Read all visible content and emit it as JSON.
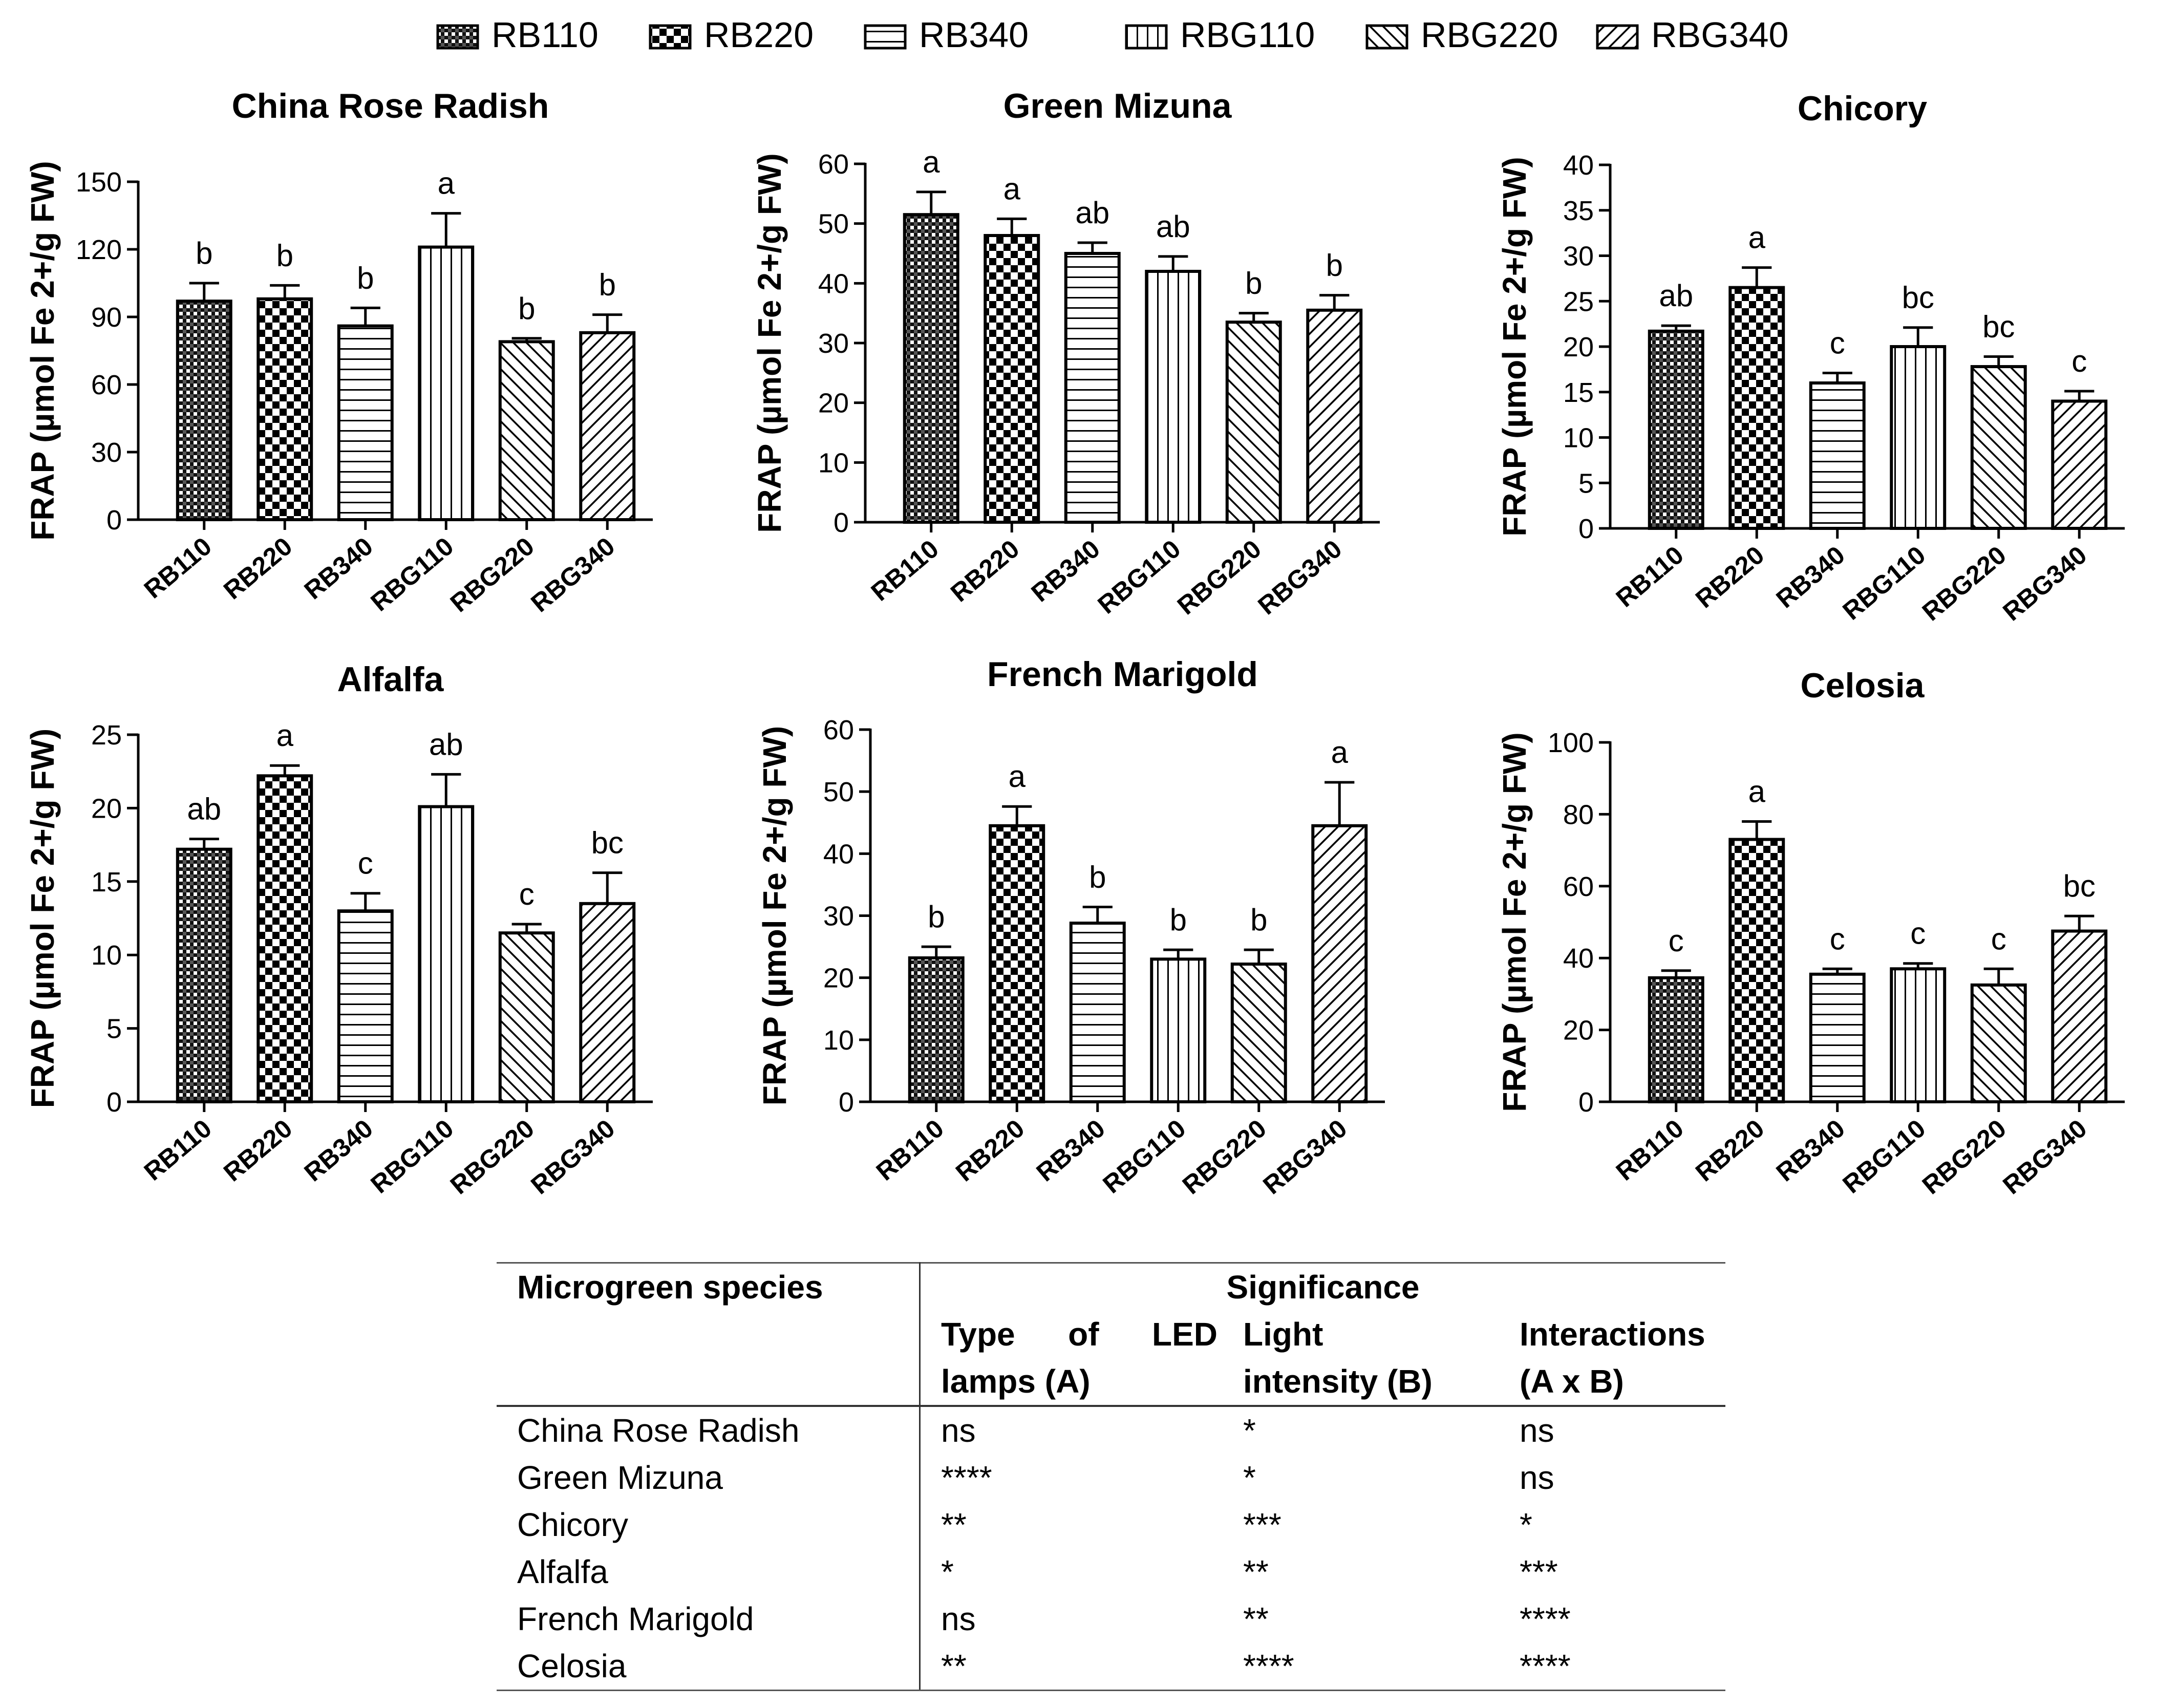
{
  "legend": [
    {
      "label": "RB110",
      "pattern": "pat-rb110"
    },
    {
      "label": "RB220",
      "pattern": "pat-rb220"
    },
    {
      "label": "RB340",
      "pattern": "pat-rb340"
    },
    {
      "label": "RBG110",
      "pattern": "pat-rbg110"
    },
    {
      "label": "RBG220",
      "pattern": "pat-rbg220"
    },
    {
      "label": "RBG340",
      "pattern": "pat-rbg340"
    }
  ],
  "colors": {
    "ink": "#000000",
    "background": "#ffffff",
    "rule": "#333333"
  },
  "chart_data": [
    {
      "type": "bar",
      "title": "China Rose Radish",
      "ylabel": "FRAP (µmol Fe 2+/g FW)",
      "categories": [
        "RB110",
        "RB220",
        "RB340",
        "RBG110",
        "RBG220",
        "RBG340"
      ],
      "values": [
        97,
        98,
        86,
        121,
        79,
        83
      ],
      "errors": [
        8,
        6,
        8,
        15,
        1.5,
        8
      ],
      "letters": [
        "b",
        "b",
        "b",
        "a",
        "b",
        "b"
      ],
      "ylim": [
        0,
        150
      ],
      "yticks": [
        0,
        30,
        60,
        90,
        120,
        150
      ]
    },
    {
      "type": "bar",
      "title": "Green Mizuna",
      "ylabel": "FRAP (µmol Fe 2+/g FW)",
      "categories": [
        "RB110",
        "RB220",
        "RB340",
        "RBG110",
        "RBG220",
        "RBG340"
      ],
      "values": [
        51.5,
        48,
        45,
        42,
        33.5,
        35.5
      ],
      "errors": [
        3.8,
        2.8,
        1.8,
        2.5,
        1.5,
        2.5
      ],
      "letters": [
        "a",
        "a",
        "ab",
        "ab",
        "b",
        "b"
      ],
      "ylim": [
        0,
        60
      ],
      "yticks": [
        0,
        10,
        20,
        30,
        40,
        50,
        60
      ]
    },
    {
      "type": "bar",
      "title": "Chicory",
      "ylabel": "FRAP (µmol Fe 2+/g FW)",
      "categories": [
        "RB110",
        "RB220",
        "RB340",
        "RBG110",
        "RBG220",
        "RBG340"
      ],
      "values": [
        21.7,
        26.5,
        16,
        20,
        17.8,
        14
      ],
      "errors": [
        0.6,
        2.2,
        1.1,
        2.1,
        1.1,
        1.1
      ],
      "letters": [
        "ab",
        "a",
        "c",
        "bc",
        "bc",
        "c"
      ],
      "ylim": [
        0,
        40
      ],
      "yticks": [
        0,
        5,
        10,
        15,
        20,
        25,
        30,
        35,
        40
      ]
    },
    {
      "type": "bar",
      "title": "Alfalfa",
      "ylabel": "FRAP (µmol Fe 2+/g FW)",
      "categories": [
        "RB110",
        "RB220",
        "RB340",
        "RBG110",
        "RBG220",
        "RBG340"
      ],
      "values": [
        17.2,
        22.2,
        13,
        20.1,
        11.5,
        13.5
      ],
      "errors": [
        0.7,
        0.7,
        1.2,
        2.2,
        0.6,
        2.1
      ],
      "letters": [
        "ab",
        "a",
        "c",
        "ab",
        "c",
        "bc"
      ],
      "ylim": [
        0,
        25
      ],
      "yticks": [
        0,
        5,
        10,
        15,
        20,
        25
      ]
    },
    {
      "type": "bar",
      "title": "French Marigold",
      "ylabel": "FRAP (µmol Fe 2+/g FW)",
      "categories": [
        "RB110",
        "RB220",
        "RB340",
        "RBG110",
        "RBG220",
        "RBG340"
      ],
      "values": [
        23.2,
        44.5,
        28.8,
        23,
        22.2,
        44.5
      ],
      "errors": [
        1.8,
        3.1,
        2.6,
        1.5,
        2.3,
        7
      ],
      "letters": [
        "b",
        "a",
        "b",
        "b",
        "b",
        "a"
      ],
      "ylim": [
        0,
        60
      ],
      "yticks": [
        0,
        10,
        20,
        30,
        40,
        50,
        60
      ]
    },
    {
      "type": "bar",
      "title": "Celosia",
      "ylabel": "FRAP (µmol Fe 2+/g FW)",
      "categories": [
        "RB110",
        "RB220",
        "RB340",
        "RBG110",
        "RBG220",
        "RBG340"
      ],
      "values": [
        34.5,
        73,
        35.5,
        37,
        32.5,
        47.5
      ],
      "errors": [
        2,
        5,
        1.5,
        1.5,
        4.5,
        4.2
      ],
      "letters": [
        "c",
        "a",
        "c",
        "c",
        "c",
        "bc"
      ],
      "ylim": [
        0,
        100
      ],
      "yticks": [
        0,
        20,
        40,
        60,
        80,
        100
      ]
    }
  ],
  "table": {
    "header": {
      "species": "Microgreen species",
      "significance": "Significance",
      "colA_line1": "Type of LED",
      "colA_line2": "lamps (A)",
      "colB_line1": "Light",
      "colB_line2": "intensity (B)",
      "colC_line1": "Interactions",
      "colC_line2": "(A x B)"
    },
    "rows": [
      {
        "species": "China Rose Radish",
        "a": "ns",
        "b": "*",
        "ab": "ns"
      },
      {
        "species": "Green Mizuna",
        "a": "****",
        "b": "*",
        "ab": "ns"
      },
      {
        "species": "Chicory",
        "a": "**",
        "b": "***",
        "ab": "*"
      },
      {
        "species": "Alfalfa",
        "a": "*",
        "b": "**",
        "ab": "***"
      },
      {
        "species": "French Marigold",
        "a": "ns",
        "b": "**",
        "ab": "****"
      },
      {
        "species": "Celosia",
        "a": "**",
        "b": "****",
        "ab": "****"
      }
    ]
  }
}
